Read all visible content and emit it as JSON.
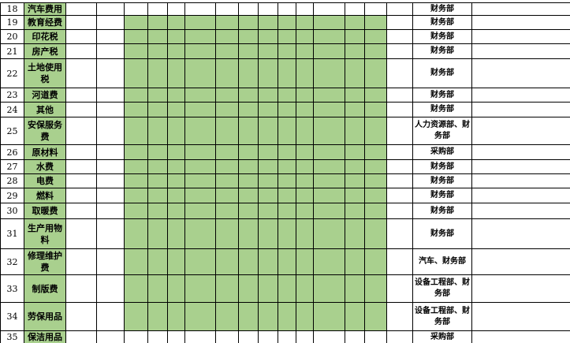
{
  "table": {
    "green_fill": "#a9d08e",
    "grid_color": "#000000",
    "rows": [
      {
        "num": "18",
        "label": "汽车费用",
        "dept": "财务部",
        "filled": false
      },
      {
        "num": "19",
        "label": "教育经费",
        "dept": "财务部",
        "filled": true
      },
      {
        "num": "20",
        "label": "印花税",
        "dept": "财务部",
        "filled": true
      },
      {
        "num": "21",
        "label": "房产税",
        "dept": "财务部",
        "filled": true
      },
      {
        "num": "22",
        "label": "土地使用税",
        "dept": "财务部",
        "filled": true
      },
      {
        "num": "23",
        "label": "河道费",
        "dept": "财务部",
        "filled": true
      },
      {
        "num": "24",
        "label": "其他",
        "dept": "财务部",
        "filled": true
      },
      {
        "num": "25",
        "label": "安保服务费",
        "dept": "人力资源部、财务部",
        "filled": true
      },
      {
        "num": "26",
        "label": "原材料",
        "dept": "采购部",
        "filled": true
      },
      {
        "num": "27",
        "label": "水费",
        "dept": "财务部",
        "filled": true
      },
      {
        "num": "28",
        "label": "电费",
        "dept": "财务部",
        "filled": true
      },
      {
        "num": "29",
        "label": "燃料",
        "dept": "财务部",
        "filled": true
      },
      {
        "num": "30",
        "label": "取暖费",
        "dept": "财务部",
        "filled": true
      },
      {
        "num": "31",
        "label": "生产用物料",
        "dept": "财务部",
        "filled": true
      },
      {
        "num": "32",
        "label": "修理维护费",
        "dept": "汽车、财务部",
        "filled": true
      },
      {
        "num": "33",
        "label": "制版费",
        "dept": "设备工程部、财务部",
        "filled": true
      },
      {
        "num": "34",
        "label": "劳保用品",
        "dept": "设备工程部、财务部",
        "filled": true
      },
      {
        "num": "35",
        "label": "保洁用品",
        "dept": "采购部",
        "filled": false
      }
    ]
  }
}
